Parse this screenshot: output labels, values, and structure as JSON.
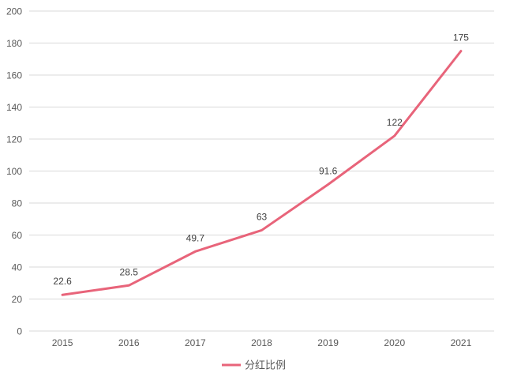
{
  "chart_data": {
    "type": "line",
    "categories": [
      "2015",
      "2016",
      "2017",
      "2018",
      "2019",
      "2020",
      "2021"
    ],
    "series": [
      {
        "name": "分红比例",
        "values": [
          22.6,
          28.5,
          49.7,
          63,
          91.6,
          122,
          175
        ],
        "labels": [
          "22.6",
          "28.5",
          "49.7",
          "63",
          "91.6",
          "122",
          "175"
        ],
        "color": "#E8647A"
      }
    ],
    "yticks": [
      "0",
      "20",
      "40",
      "60",
      "80",
      "100",
      "120",
      "140",
      "160",
      "180",
      "200"
    ],
    "ylim": [
      0,
      200
    ],
    "title": "",
    "xlabel": "",
    "ylabel": "",
    "grid": true,
    "legend_position": "bottom-center",
    "colors": {
      "grid": "#D9D9D9",
      "tick_text": "#595959",
      "label_text": "#404040"
    }
  }
}
